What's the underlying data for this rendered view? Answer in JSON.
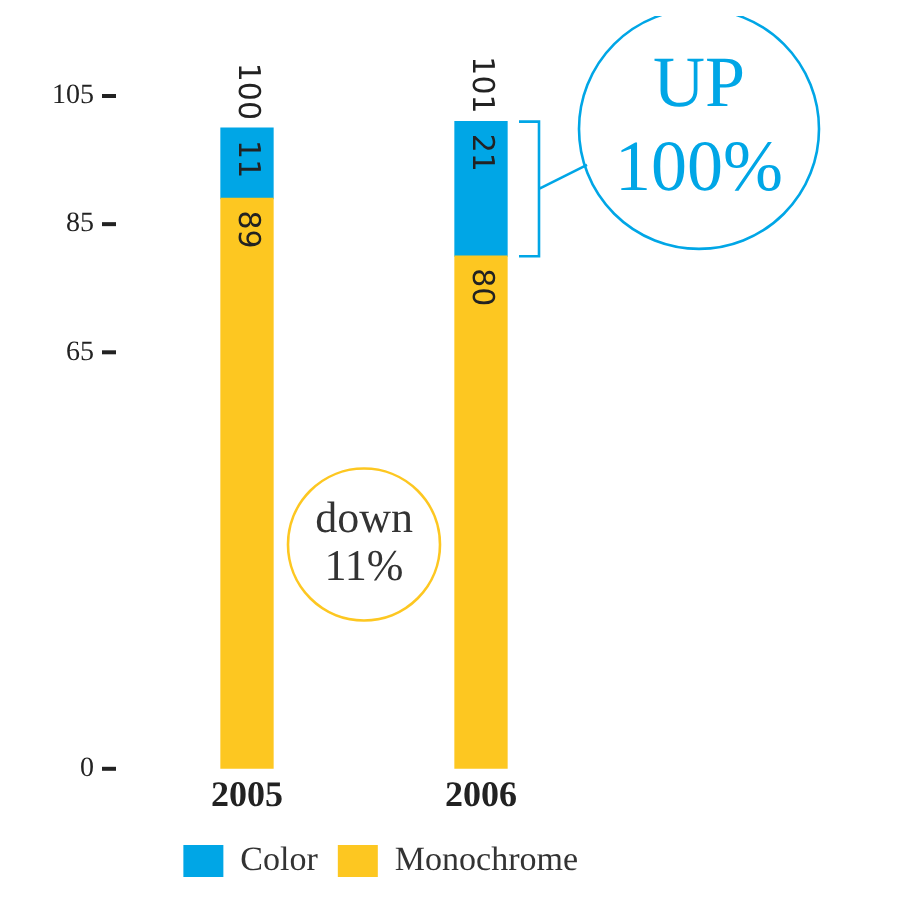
{
  "chart_data": {
    "type": "bar",
    "stacked": true,
    "categories": [
      "2005",
      "2006"
    ],
    "series": [
      {
        "name": "Monochrome",
        "color": "#fdc721",
        "values": [
          89,
          80
        ]
      },
      {
        "name": "Color",
        "color": "#00a6e6",
        "values": [
          11,
          21
        ]
      }
    ],
    "ylim": [
      0,
      105
    ],
    "yticks": [
      0,
      65,
      85,
      105
    ],
    "grid": false,
    "legend": "bottom right",
    "data_labels": true,
    "totals": [
      "100",
      "101"
    ],
    "annotations": [
      "UP 100%",
      "down 11%"
    ]
  }
}
